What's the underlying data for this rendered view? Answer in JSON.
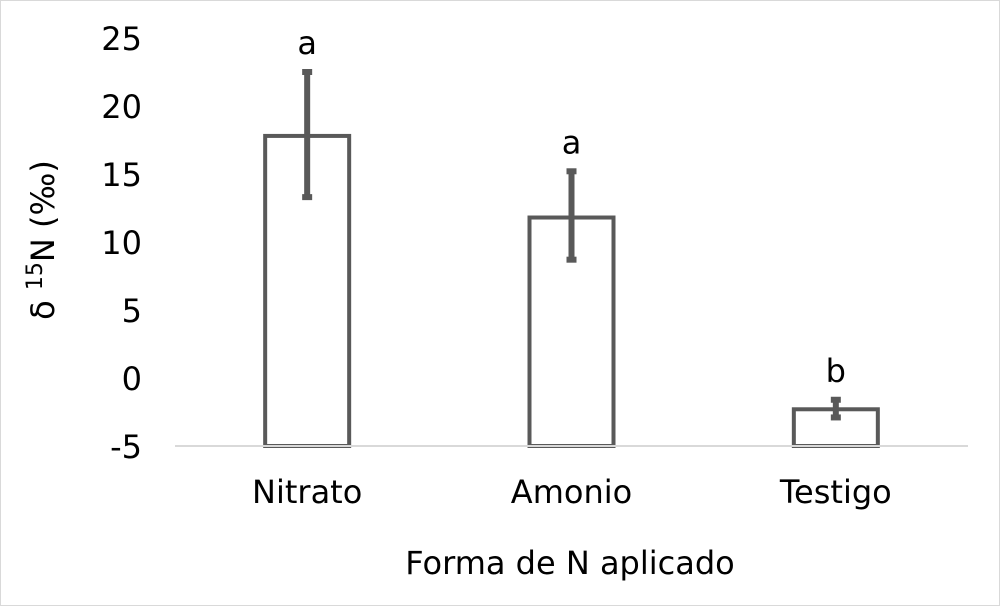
{
  "chart_data": {
    "type": "bar",
    "categories": [
      "Nitrato",
      "Amonio",
      "Testigo"
    ],
    "values": [
      17.8,
      11.8,
      -2.3
    ],
    "error": [
      [
        13.3,
        22.5
      ],
      [
        8.7,
        15.2
      ],
      [
        -2.9,
        -1.6
      ]
    ],
    "significance_labels": [
      "a",
      "a",
      "b"
    ],
    "xlabel": "Forma de N aplicado",
    "ylabel": "δ 15N (‰)",
    "ylabel_parts": {
      "prefix": "δ ",
      "superscript": "15",
      "suffix": "N (‰)"
    },
    "y_ticks": [
      "25",
      "20",
      "15",
      "10",
      "5",
      "0",
      "-5"
    ],
    "y_tick_values": [
      25,
      20,
      15,
      10,
      5,
      0,
      -5
    ],
    "ylim": [
      -5,
      25
    ],
    "grid": false,
    "legend": "none",
    "colors": {
      "bar_stroke": "#595959",
      "bar_fill": "#ffffff",
      "error_bar": "#595959",
      "axis": "#d9d9d9",
      "frame": "#d9d9d9"
    }
  }
}
